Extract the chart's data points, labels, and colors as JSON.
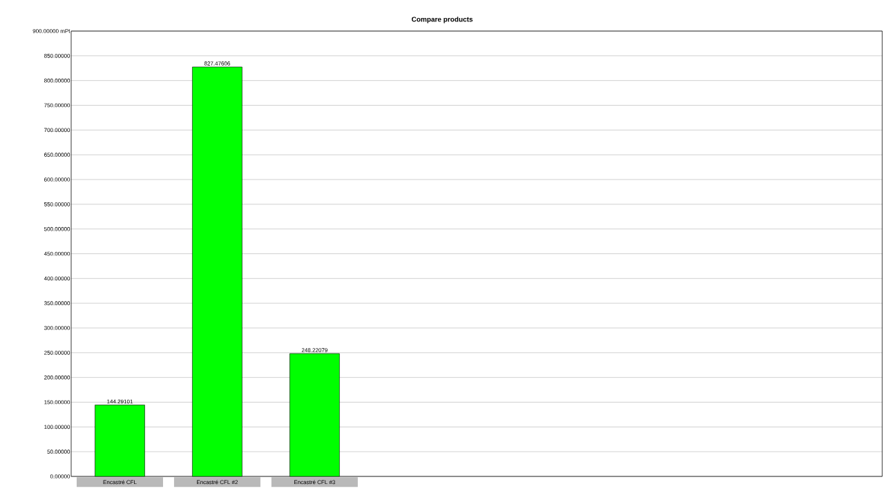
{
  "chart_data": {
    "type": "bar",
    "title": "Compare products",
    "categories": [
      "Encastré CFL",
      "Encastré CFL #2",
      "Encastré CFL #3"
    ],
    "values": [
      144.29101,
      827.47606,
      248.22079
    ],
    "value_labels": [
      "144.29101",
      "827.47606",
      "248.22079"
    ],
    "color": "#00ff00",
    "ylim": [
      0,
      900
    ],
    "yticks": [
      {
        "value": 0,
        "label": "0.00000"
      },
      {
        "value": 50,
        "label": "50.00000"
      },
      {
        "value": 100,
        "label": "100.00000"
      },
      {
        "value": 150,
        "label": "150.00000"
      },
      {
        "value": 200,
        "label": "200.00000"
      },
      {
        "value": 250,
        "label": "250.00000"
      },
      {
        "value": 300,
        "label": "300.00000"
      },
      {
        "value": 350,
        "label": "350.00000"
      },
      {
        "value": 400,
        "label": "400.00000"
      },
      {
        "value": 450,
        "label": "450.00000"
      },
      {
        "value": 500,
        "label": "500.00000"
      },
      {
        "value": 550,
        "label": "550.00000"
      },
      {
        "value": 600,
        "label": "600.00000"
      },
      {
        "value": 650,
        "label": "650.00000"
      },
      {
        "value": 700,
        "label": "700.00000"
      },
      {
        "value": 750,
        "label": "750.00000"
      },
      {
        "value": 800,
        "label": "800.00000"
      },
      {
        "value": 850,
        "label": "850.00000"
      },
      {
        "value": 900,
        "label": "900.00000 mPt"
      }
    ],
    "grid": "y"
  }
}
